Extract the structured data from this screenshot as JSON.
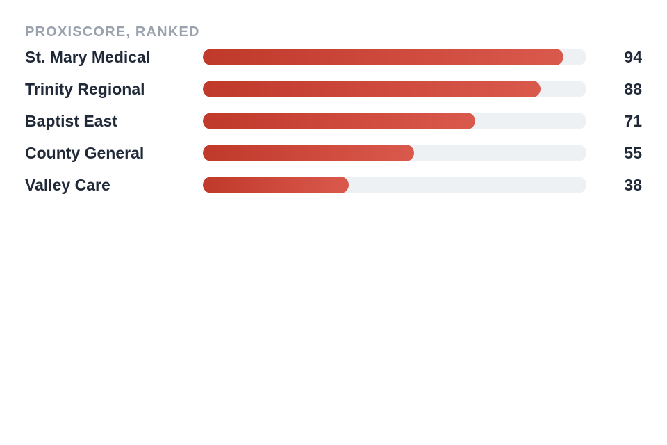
{
  "chart_data": {
    "type": "bar",
    "orientation": "horizontal",
    "title": "PROXISCORE, RANKED",
    "categories": [
      "St. Mary Medical",
      "Trinity Regional",
      "Baptist East",
      "County General",
      "Valley Care"
    ],
    "values": [
      94,
      88,
      71,
      55,
      38
    ],
    "xlim": [
      0,
      100
    ],
    "grid": false,
    "colors": {
      "bar_start": "#c0392b",
      "bar_end": "#d9594c",
      "track": "#eef1f4"
    }
  }
}
